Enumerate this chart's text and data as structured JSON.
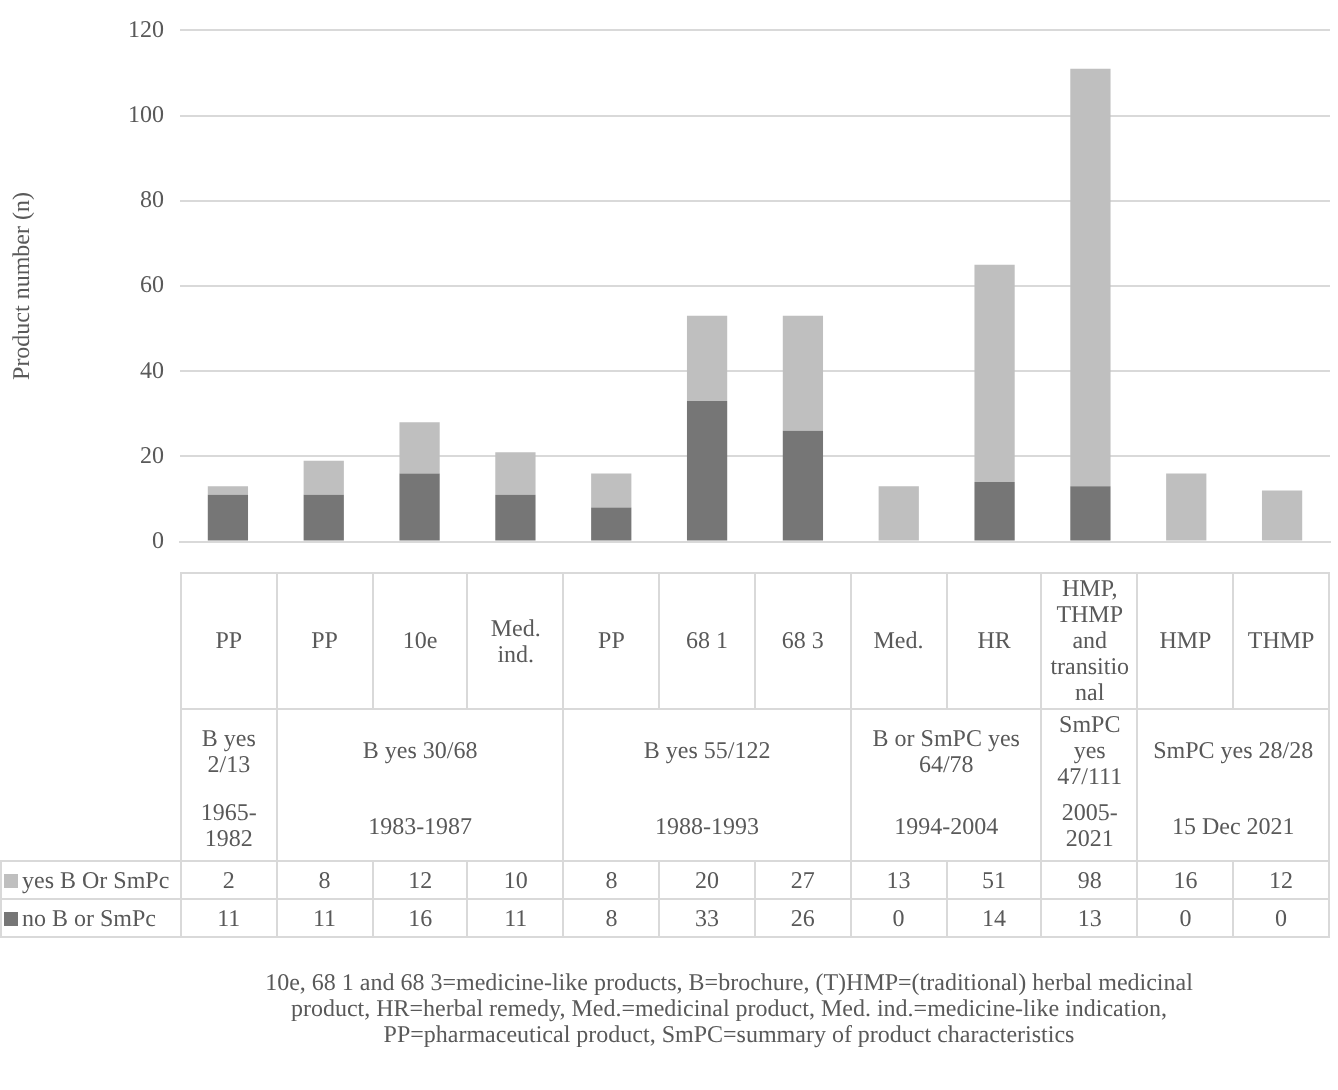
{
  "chart_data": {
    "type": "bar",
    "stacked": true,
    "categories": [
      "PP",
      "PP",
      "10e",
      "Med. ind.",
      "PP",
      "68 1",
      "68 3",
      "Med.",
      "HR",
      "HMP, THMP and transitional",
      "HMP",
      "THMP"
    ],
    "series": [
      {
        "name": "no B or SmPc",
        "color": "#767676",
        "values": [
          11,
          11,
          16,
          11,
          8,
          33,
          26,
          0,
          14,
          13,
          0,
          0
        ]
      },
      {
        "name": "yes B Or SmPc",
        "color": "#bfbfbf",
        "values": [
          2,
          8,
          12,
          10,
          8,
          20,
          27,
          13,
          51,
          98,
          16,
          12
        ]
      }
    ],
    "ylabel": "Product number (n)",
    "ylim": [
      0,
      120
    ],
    "yticks": [
      0,
      20,
      40,
      60,
      80,
      100,
      120
    ],
    "grid": "y",
    "legend": "bottom",
    "data_labels": true,
    "annotations": [
      "B yes 2/13",
      "1965-1982",
      "B yes 30/68",
      "1983-1987",
      "B yes 55/122",
      "1988-1993",
      "B or SmPC yes 64/78",
      "1994-2004",
      "SmPC yes 47/111",
      "2005-2021",
      "SmPC yes 28/28",
      "15 Dec 2021",
      "10e, 68 1 and 68 3=medicine-like products, B=brochure, (T)HMP=(traditional) herbal medicinal product, HR=herbal remedy, Med.=medicinal product, Med. ind.=medicine-like indication, PP=pharmaceutical product, SmPC=summary of product characteristics"
    ]
  }
}
